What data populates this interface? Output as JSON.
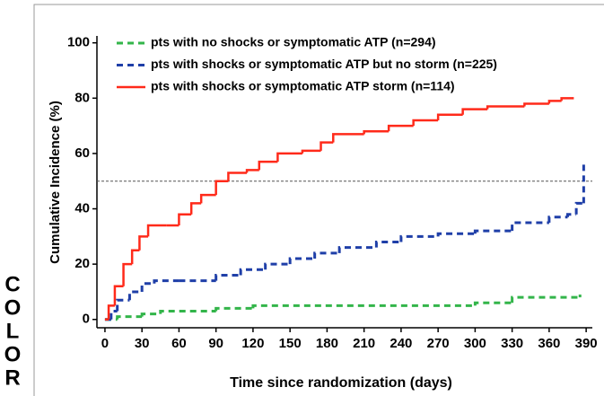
{
  "side_label": [
    "C",
    "O",
    "L",
    "O",
    "R"
  ],
  "chart_data": {
    "type": "step",
    "x_label": "Time since randomization (days)",
    "y_label": "Cumulative Incidence (%)",
    "xlim": [
      -6.5,
      395
    ],
    "ylim": [
      -3,
      102.5
    ],
    "xticks": [
      0,
      30,
      60,
      90,
      120,
      150,
      180,
      210,
      240,
      270,
      300,
      330,
      360,
      390
    ],
    "yticks": [
      0,
      20,
      40,
      60,
      80,
      100
    ],
    "reference_line": 50,
    "legend": "upper left",
    "series": [
      {
        "name": "pts with no shocks or symptomatic ATP (n=294)",
        "color": "#33b54a",
        "dash": true,
        "x": [
          0,
          10,
          30,
          45,
          90,
          120,
          240,
          300,
          330,
          385
        ],
        "values": [
          0,
          1,
          2,
          3,
          4,
          5,
          5,
          6,
          8,
          9
        ]
      },
      {
        "name": "pts with shocks or symptomatic ATP but no storm (n=225)",
        "color": "#1f3fa8",
        "dash": true,
        "x": [
          0,
          5,
          10,
          20,
          30,
          40,
          60,
          90,
          110,
          130,
          150,
          170,
          190,
          220,
          240,
          270,
          300,
          330,
          360,
          375,
          382,
          388
        ],
        "values": [
          0,
          3,
          7,
          10,
          13,
          14,
          14,
          16,
          18,
          20,
          22,
          24,
          26,
          28,
          30,
          31,
          32,
          35,
          37,
          38,
          42,
          56
        ]
      },
      {
        "name": "pts with shocks or symptomatic ATP storm (n=114)",
        "color": "#ff2a1a",
        "dash": false,
        "x": [
          0,
          3,
          8,
          15,
          22,
          28,
          35,
          50,
          60,
          70,
          78,
          90,
          100,
          115,
          125,
          140,
          160,
          175,
          185,
          210,
          230,
          250,
          270,
          290,
          310,
          340,
          360,
          370,
          380
        ],
        "values": [
          0,
          5,
          12,
          20,
          25,
          30,
          34,
          34,
          38,
          42,
          45,
          50,
          53,
          54,
          57,
          60,
          61,
          64,
          67,
          68,
          70,
          72,
          74,
          76,
          77,
          78,
          79,
          80,
          80
        ]
      }
    ]
  }
}
